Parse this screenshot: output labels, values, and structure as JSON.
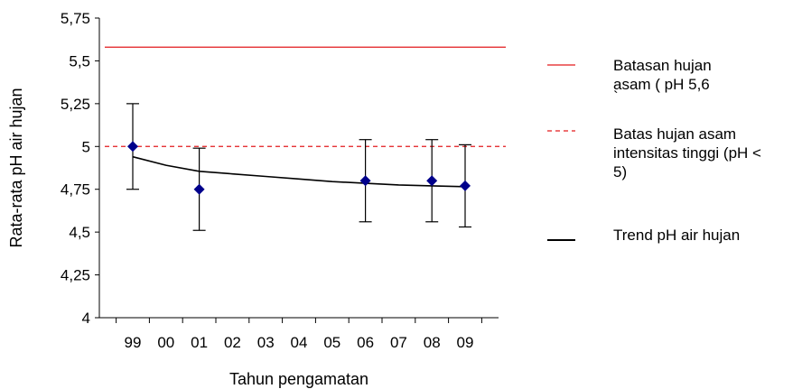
{
  "chart_data": {
    "type": "scatter",
    "xlabel": "Tahun pengamatan",
    "ylabel": "Rata-rata pH air hujan",
    "categories": [
      "99",
      "00",
      "01",
      "02",
      "03",
      "04",
      "05",
      "06",
      "07",
      "08",
      "09"
    ],
    "ylim": [
      4,
      5.75
    ],
    "yticks": [
      "4",
      "4,25",
      "4,5",
      "4,75",
      "5",
      "5,25",
      "5,5",
      "5,75"
    ],
    "ytick_values": [
      4,
      4.25,
      4.5,
      4.75,
      5,
      5.25,
      5.5,
      5.75
    ],
    "grid": false,
    "legend_position": "right",
    "points": [
      {
        "x": "99",
        "y": 5.0,
        "err_low": 4.75,
        "err_high": 5.25
      },
      {
        "x": "01",
        "y": 4.75,
        "err_low": 4.51,
        "err_high": 4.99
      },
      {
        "x": "06",
        "y": 4.8,
        "err_low": 4.56,
        "err_high": 5.04
      },
      {
        "x": "08",
        "y": 4.8,
        "err_low": 4.56,
        "err_high": 5.04
      },
      {
        "x": "09",
        "y": 4.77,
        "err_low": 4.53,
        "err_high": 5.01
      }
    ],
    "reference_lines": [
      {
        "y": 5.58,
        "color": "#e31a1c",
        "style": "solid"
      },
      {
        "y": 5.0,
        "color": "#e31a1c",
        "style": "dashed"
      }
    ],
    "trend": {
      "color": "#000000",
      "x": [
        "99",
        "00",
        "01",
        "02",
        "03",
        "04",
        "05",
        "06",
        "07",
        "08",
        "09"
      ],
      "y": [
        4.94,
        4.89,
        4.855,
        4.84,
        4.825,
        4.81,
        4.795,
        4.785,
        4.775,
        4.77,
        4.765
      ]
    },
    "legend": [
      {
        "label_lines": [
          "Batasan hujan",
          "asam   ( pH 5,6",
          "`"
        ],
        "color": "#e31a1c",
        "style": "solid"
      },
      {
        "label_lines": [
          "Batas hujan asam",
          "intensitas tinggi (pH <",
          "5)"
        ],
        "color": "#e31a1c",
        "style": "dashed"
      },
      {
        "label_lines": [
          "Trend pH air hujan"
        ],
        "color": "#000000",
        "style": "solid"
      }
    ],
    "marker_color": "#00008b"
  }
}
